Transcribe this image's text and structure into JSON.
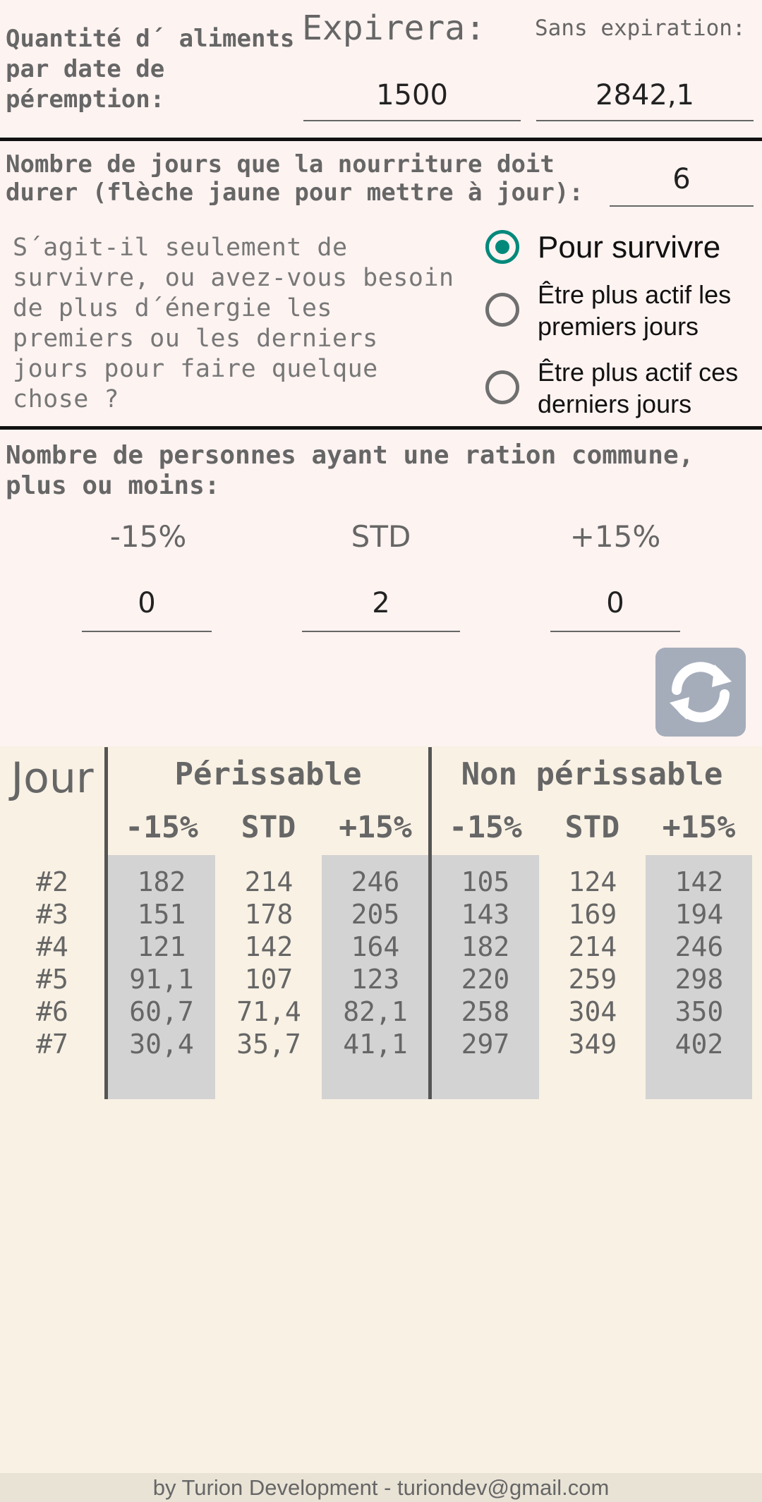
{
  "expiry": {
    "label": "Quantité d´ aliments par date de péremption:",
    "expires_label": "Expirera:",
    "no_expiry_label": "Sans expiration:",
    "expires_value": "1500",
    "no_expiry_value": "2842,1"
  },
  "days": {
    "label": "Nombre de jours que la nourriture doit durer (flèche jaune pour mettre à jour):",
    "value": "6"
  },
  "energy": {
    "question": "S´agit-il seulement de survivre, ou avez-vous besoin de plus d´énergie les premiers ou les derniers jours pour faire quelque chose ?",
    "options": [
      {
        "label": "Pour survivre",
        "checked": true
      },
      {
        "label": "Être plus actif les premiers jours",
        "checked": false
      },
      {
        "label": "Être plus actif ces derniers jours",
        "checked": false
      }
    ]
  },
  "persons": {
    "label": "Nombre de personnes ayant une ration commune, plus ou moins:",
    "columns": [
      {
        "header": "-15%",
        "value": "0"
      },
      {
        "header": "STD",
        "value": "2"
      },
      {
        "header": "+15%",
        "value": "0"
      }
    ],
    "refresh_icon": "refresh-icon"
  },
  "table": {
    "day_header": "Jour",
    "perishable_header": "Périssable",
    "non_perishable_header": "Non périssable",
    "sub_headers": [
      "-15%",
      "STD",
      "+15%",
      "-15%",
      "STD",
      "+15%"
    ],
    "rows": [
      {
        "day": "#2",
        "values": [
          "182",
          "214",
          "246",
          "105",
          "124",
          "142"
        ]
      },
      {
        "day": "#3",
        "values": [
          "151",
          "178",
          "205",
          "143",
          "169",
          "194"
        ]
      },
      {
        "day": "#4",
        "values": [
          "121",
          "142",
          "164",
          "182",
          "214",
          "246"
        ]
      },
      {
        "day": "#5",
        "values": [
          "91,1",
          "107",
          "123",
          "220",
          "259",
          "298"
        ]
      },
      {
        "day": "#6",
        "values": [
          "60,7",
          "71,4",
          "82,1",
          "258",
          "304",
          "350"
        ]
      },
      {
        "day": "#7",
        "values": [
          "30,4",
          "35,7",
          "41,1",
          "297",
          "349",
          "402"
        ]
      }
    ]
  },
  "footer": "by Turion Development - turiondev@gmail.com",
  "colors": {
    "accent": "#00897b",
    "refresh_button": "#a5adbb",
    "table_shade": "#d3d3d3"
  }
}
